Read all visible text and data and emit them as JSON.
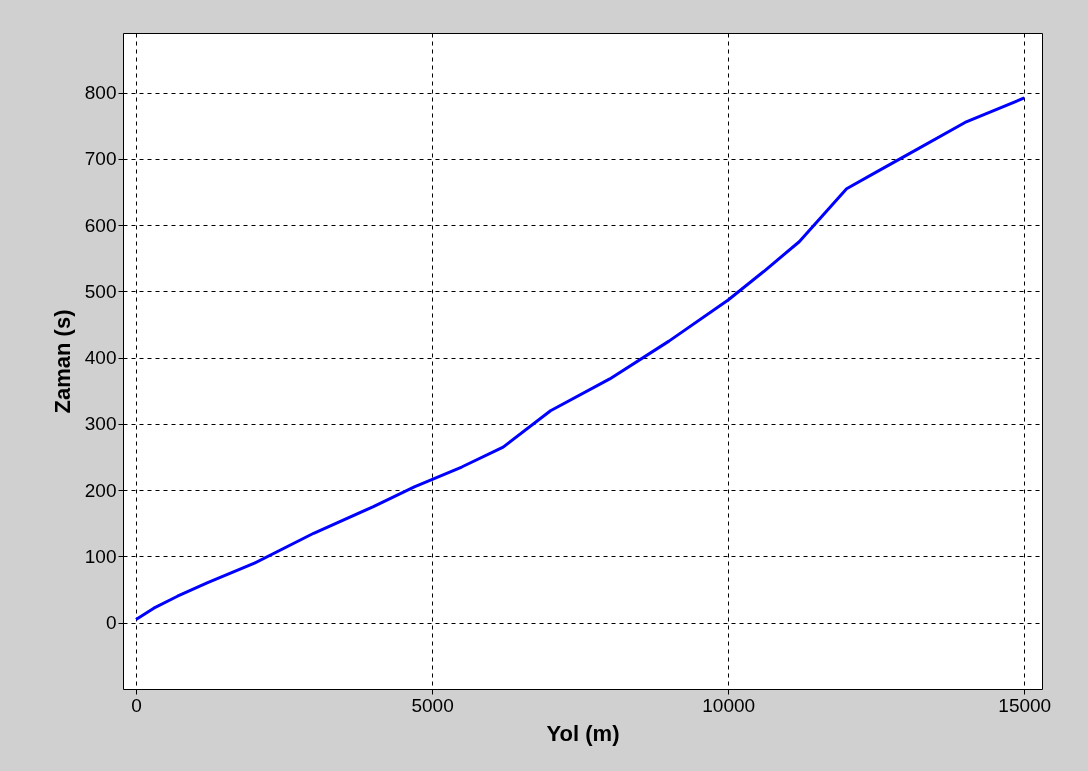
{
  "chart_data": {
    "type": "line",
    "xlabel": "Yol (m)",
    "ylabel": "Zaman (s)",
    "x": [
      0,
      300,
      700,
      1200,
      2000,
      3000,
      4000,
      4700,
      5500,
      6200,
      7000,
      8000,
      9000,
      10000,
      10600,
      11200,
      12000,
      12500,
      13000,
      14000,
      15000
    ],
    "series": [
      {
        "color": "#0000ff",
        "values": [
          5,
          22,
          40,
          60,
          90,
          135,
          175,
          205,
          235,
          265,
          320,
          368,
          425,
          487,
          530,
          575,
          655,
          680,
          705,
          755,
          792
        ]
      }
    ],
    "xlim": [
      -220,
      15300
    ],
    "ylim": [
      -100,
      890
    ],
    "xticks": [
      0,
      5000,
      10000,
      15000
    ],
    "yticks": [
      0,
      100,
      200,
      300,
      400,
      500,
      600,
      700,
      800
    ],
    "grid": true,
    "line_style": "solid"
  }
}
